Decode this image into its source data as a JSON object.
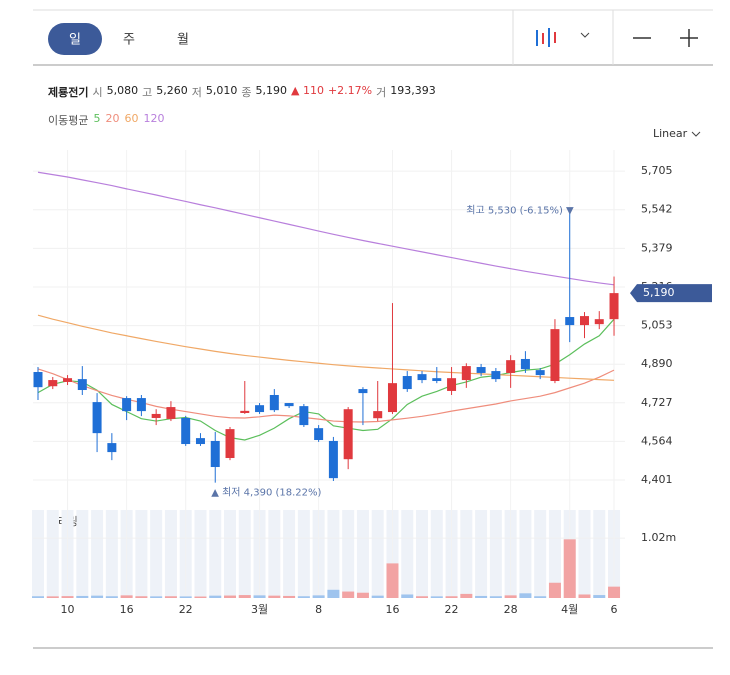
{
  "tabs": [
    "일",
    "주",
    "월"
  ],
  "scale": "Linear",
  "stock": {
    "name": "제룡전기",
    "open_label": "시",
    "open": "5,080",
    "high_label": "고",
    "high": "5,260",
    "low_label": "저",
    "low": "5,010",
    "close_label": "종",
    "close": "5,190",
    "change": "▲ 110",
    "change_pct": "+2.17%",
    "volume_label": "거",
    "volume": "193,393"
  },
  "ma_legend": "이동평균",
  "chart_data": {
    "type": "candlestick",
    "categories": [
      null,
      null,
      "10",
      null,
      null,
      null,
      "16",
      null,
      null,
      null,
      "22",
      null,
      null,
      null,
      null,
      "3월",
      null,
      null,
      null,
      "8",
      null,
      null,
      null,
      null,
      "16",
      null,
      null,
      null,
      "22",
      null,
      null,
      null,
      "28",
      null,
      null,
      null,
      "4월",
      null,
      null,
      "6"
    ],
    "open": [
      4857,
      4797,
      4815,
      4827,
      4730,
      4557,
      4747,
      4747,
      4663,
      4659,
      4663,
      4578,
      4566,
      4494,
      4684,
      4717,
      4760,
      4726,
      4713,
      4620,
      4566,
      4489,
      4785,
      4662,
      4688,
      4840,
      4848,
      4831,
      4777,
      4823,
      4878,
      4861,
      4853,
      4912,
      4865,
      4819,
      5089,
      5055,
      5059,
      5080
    ],
    "high": [
      4878,
      4836,
      4844,
      4882,
      4768,
      4599,
      4755,
      4760,
      4700,
      4734,
      4672,
      4599,
      4604,
      4625,
      4819,
      4726,
      4785,
      4726,
      4722,
      4633,
      4583,
      4709,
      4793,
      4819,
      5148,
      4861,
      4861,
      4878,
      4878,
      4894,
      4891,
      4874,
      4928,
      4945,
      4874,
      5080,
      5530,
      5110,
      5114,
      5260
    ],
    "low": [
      4739,
      4785,
      4802,
      4760,
      4519,
      4485,
      4654,
      4671,
      4633,
      4650,
      4545,
      4545,
      4390,
      4485,
      4680,
      4680,
      4688,
      4705,
      4625,
      4562,
      4397,
      4447,
      4633,
      4650,
      4680,
      4773,
      4810,
      4810,
      4760,
      4790,
      4840,
      4815,
      4790,
      4853,
      4827,
      4810,
      4983,
      5000,
      5038,
      5010
    ],
    "close": [
      4793,
      4823,
      4831,
      4781,
      4599,
      4519,
      4692,
      4692,
      4680,
      4709,
      4553,
      4553,
      4456,
      4616,
      4693,
      4688,
      4696,
      4713,
      4633,
      4570,
      4409,
      4700,
      4768,
      4692,
      4810,
      4785,
      4823,
      4819,
      4831,
      4882,
      4853,
      4827,
      4907,
      4869,
      4844,
      5038,
      5055,
      5093,
      5080,
      5190
    ],
    "volume": [
      30000,
      28000,
      32000,
      35000,
      40000,
      30000,
      45000,
      30000,
      28000,
      30000,
      27000,
      25000,
      40000,
      42000,
      50000,
      45000,
      40000,
      35000,
      30000,
      45000,
      140000,
      110000,
      90000,
      40000,
      590000,
      60000,
      30000,
      28000,
      30000,
      70000,
      35000,
      30000,
      45000,
      80000,
      30000,
      260000,
      1000000,
      60000,
      50000,
      193393
    ],
    "up_color": "#e0393e",
    "down_color": "#1f6fd6",
    "volume_up_color": "#f2a3a3",
    "volume_down_color": "#9fc4ee",
    "ma_series": [
      {
        "name": "5",
        "color": "#5cbf5c",
        "values": [
          4770,
          4805,
          4820,
          4815,
          4780,
          4720,
          4690,
          4660,
          4650,
          4660,
          4665,
          4650,
          4610,
          4580,
          4570,
          4590,
          4620,
          4660,
          4690,
          4680,
          4630,
          4620,
          4610,
          4615,
          4660,
          4720,
          4755,
          4775,
          4800,
          4815,
          4835,
          4842,
          4855,
          4865,
          4870,
          4890,
          4930,
          4975,
          5010,
          5080
        ]
      },
      {
        "name": "20",
        "color": "#ef8d7c",
        "values": [
          4870,
          4850,
          4825,
          4800,
          4778,
          4758,
          4742,
          4728,
          4712,
          4700,
          4690,
          4680,
          4670,
          4664,
          4663,
          4668,
          4675,
          4672,
          4665,
          4658,
          4650,
          4647,
          4646,
          4648,
          4655,
          4662,
          4670,
          4680,
          4692,
          4702,
          4712,
          4722,
          4735,
          4745,
          4755,
          4770,
          4790,
          4810,
          4835,
          4865
        ]
      },
      {
        "name": "60",
        "color": "#f0a866",
        "values": [
          5097,
          5080,
          5065,
          5050,
          5036,
          5022,
          5010,
          4998,
          4986,
          4975,
          4964,
          4954,
          4944,
          4935,
          4927,
          4920,
          4913,
          4906,
          4900,
          4894,
          4888,
          4883,
          4878,
          4874,
          4870,
          4866,
          4862,
          4858,
          4855,
          4852,
          4849,
          4846,
          4843,
          4840,
          4837,
          4834,
          4831,
          4828,
          4825,
          4822
        ]
      },
      {
        "name": "120",
        "color": "#b87fdc",
        "values": [
          5700,
          5690,
          5680,
          5668,
          5656,
          5644,
          5630,
          5617,
          5604,
          5590,
          5577,
          5563,
          5550,
          5536,
          5522,
          5508,
          5494,
          5480,
          5466,
          5452,
          5438,
          5425,
          5412,
          5400,
          5388,
          5376,
          5364,
          5352,
          5340,
          5328,
          5316,
          5304,
          5293,
          5282,
          5272,
          5262,
          5252,
          5242,
          5233,
          5225
        ]
      }
    ],
    "ylim": [
      4359,
      5794
    ],
    "yticks": [
      {
        "value": 4401,
        "label": "4,401"
      },
      {
        "value": 4564,
        "label": "4,564"
      },
      {
        "value": 4727,
        "label": "4,727"
      },
      {
        "value": 4890,
        "label": "4,890"
      },
      {
        "value": 5053,
        "label": "5,053"
      },
      {
        "value": 5216,
        "label": "5,216"
      },
      {
        "value": 5379,
        "label": "5,379"
      },
      {
        "value": 5542,
        "label": "5,542"
      },
      {
        "value": 5705,
        "label": "5,705"
      }
    ],
    "vlim": [
      0,
      1500000
    ],
    "vticks": [
      {
        "value": 1020000,
        "label": "1.02m"
      }
    ],
    "volume_title": "거래량",
    "max_marker": {
      "index": 36,
      "value": 5530,
      "label": "최고 5,530 (-6.15%) ▼"
    },
    "min_marker": {
      "index": 12,
      "value": 4390,
      "label": "▲ 최저 4,390 (18.22%)"
    },
    "last_price": {
      "value": 5190,
      "label": "5,190",
      "color": "#3c5a99"
    },
    "grid": true
  }
}
